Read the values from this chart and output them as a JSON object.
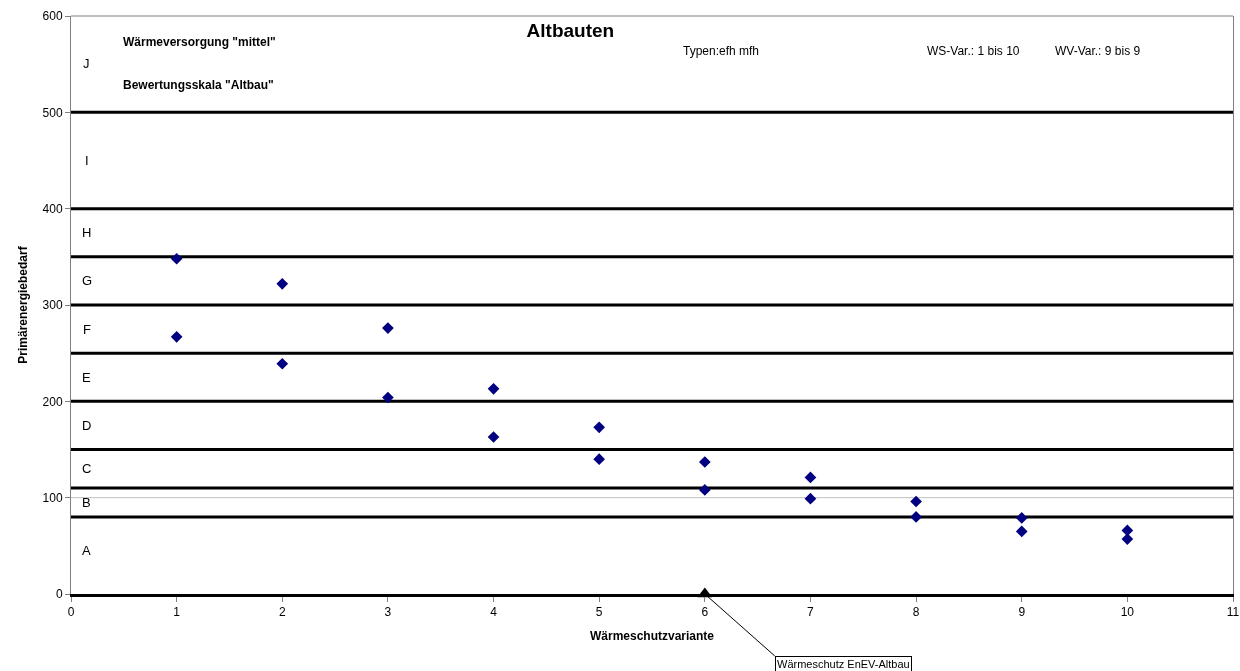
{
  "chart_data": {
    "type": "scatter",
    "title": "Altbauten",
    "xlabel": "Wärmeschutzvariante",
    "ylabel": "Primärenergiebedarf",
    "xlim": [
      0,
      11
    ],
    "xticks": [
      0,
      1,
      2,
      3,
      4,
      5,
      6,
      7,
      8,
      9,
      10,
      11
    ],
    "ylim": [
      0,
      600
    ],
    "yticks": [
      0,
      100,
      200,
      300,
      400,
      500,
      600
    ],
    "marker": "diamond",
    "series": [
      {
        "color": "#000080",
        "x": [
          1,
          1,
          2,
          2,
          3,
          3,
          4,
          4,
          5,
          5,
          6,
          6,
          7,
          7,
          8,
          8,
          9,
          9,
          10,
          10
        ],
        "values": [
          348,
          267,
          322,
          239,
          276,
          204,
          213,
          163,
          173,
          140,
          137,
          108,
          121,
          99,
          96,
          80,
          79,
          65,
          66,
          57
        ]
      },
      {
        "color": "#000000",
        "marker": "triangle",
        "x": [
          6
        ],
        "values": [
          0
        ]
      }
    ],
    "ref_lines": [
      {
        "axis": "y",
        "value": 80,
        "color": "#000000"
      },
      {
        "axis": "y",
        "value": 100,
        "color": "#c0c0c0"
      },
      {
        "axis": "y",
        "value": 110,
        "color": "#000000"
      },
      {
        "axis": "y",
        "value": 150,
        "color": "#000000"
      },
      {
        "axis": "y",
        "value": 200,
        "color": "#000000"
      },
      {
        "axis": "y",
        "value": 250,
        "color": "#000000"
      },
      {
        "axis": "y",
        "value": 300,
        "color": "#000000"
      },
      {
        "axis": "y",
        "value": 350,
        "color": "#000000"
      },
      {
        "axis": "y",
        "value": 400,
        "color": "#000000"
      },
      {
        "axis": "y",
        "value": 500,
        "color": "#000000"
      }
    ],
    "annotations": [
      "Wärmeversorgung \"mittel\"",
      "Bewertungsskala \"Altbau\"",
      "Typen:efh mfh",
      "WS-Var.: 1 bis 10",
      "WV-Var.: 9 bis 9",
      "A",
      "B",
      "C",
      "D",
      "E",
      "F",
      "G",
      "H",
      "I",
      "J",
      {
        "text": "Wärmeschutz EnEV-Altbau",
        "x": 6,
        "y": 0
      }
    ]
  }
}
